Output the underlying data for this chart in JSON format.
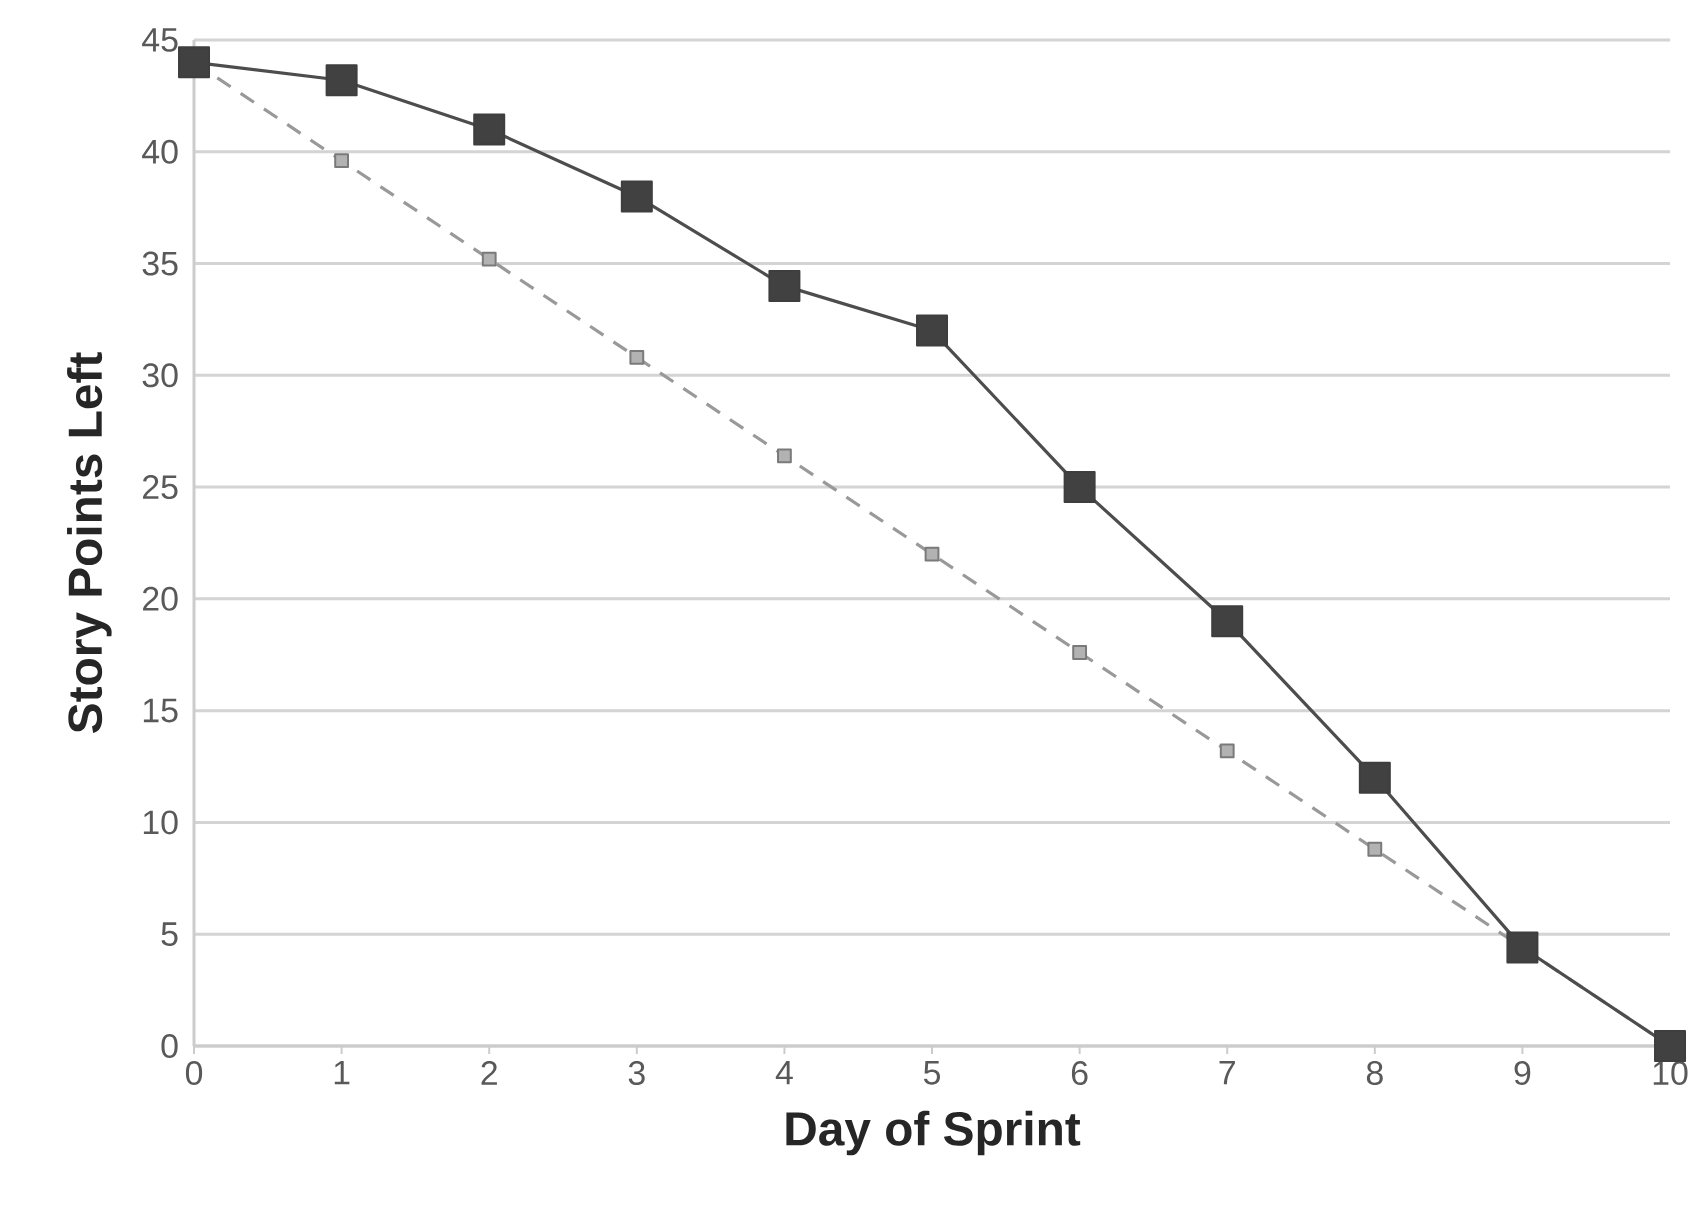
{
  "chart_data": {
    "type": "line",
    "xlabel": "Day of Sprint",
    "ylabel": "Story Points Left",
    "x": [
      0,
      1,
      2,
      3,
      4,
      5,
      6,
      7,
      8,
      9,
      10
    ],
    "series": [
      {
        "color": "#999999",
        "line_style": "dashed",
        "marker": "square",
        "values": [
          44,
          39.6,
          35.2,
          30.8,
          26.4,
          22,
          17.6,
          13.2,
          8.8,
          4.4,
          0
        ]
      },
      {
        "color": "#4d4d4d",
        "line_style": "solid",
        "marker": "square",
        "values": [
          44,
          43.2,
          41,
          38,
          34,
          32,
          25,
          19,
          12,
          4.4,
          0
        ]
      }
    ],
    "xlim": [
      0,
      10
    ],
    "ylim": [
      0,
      45
    ],
    "xticks": [
      0,
      1,
      2,
      3,
      4,
      5,
      6,
      7,
      8,
      9,
      10
    ],
    "yticks": [
      0,
      5,
      10,
      15,
      20,
      25,
      30,
      35,
      40,
      45
    ],
    "grid": "y"
  }
}
